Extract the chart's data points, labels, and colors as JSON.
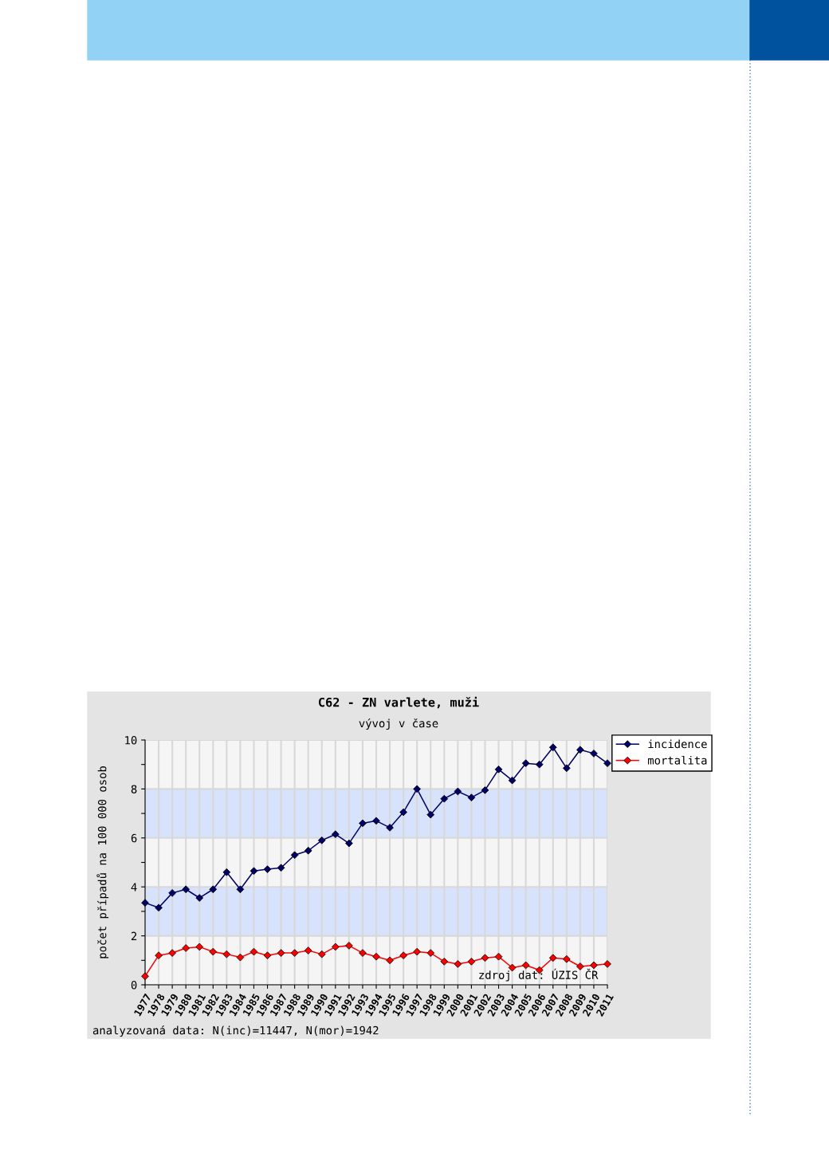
{
  "chart_data": {
    "type": "line",
    "title": "C62 - ZN varlete, muži",
    "subtitle": "vývoj v čase",
    "ylabel": "počet případů na 100 000 osob",
    "categories": [
      "1977",
      "1978",
      "1979",
      "1980",
      "1981",
      "1982",
      "1983",
      "1984",
      "1985",
      "1986",
      "1987",
      "1988",
      "1989",
      "1990",
      "1991",
      "1992",
      "1993",
      "1994",
      "1995",
      "1996",
      "1997",
      "1998",
      "1999",
      "2000",
      "2001",
      "2002",
      "2003",
      "2004",
      "2005",
      "2006",
      "2007",
      "2008",
      "2009",
      "2010",
      "2011"
    ],
    "series": [
      {
        "name": "incidence",
        "color": "#000066",
        "values": [
          3.35,
          3.15,
          3.75,
          3.9,
          3.55,
          3.9,
          4.6,
          3.9,
          4.65,
          4.72,
          4.78,
          5.3,
          5.48,
          5.9,
          6.15,
          5.78,
          6.6,
          6.7,
          6.42,
          7.05,
          8.0,
          6.95,
          7.6,
          7.9,
          7.65,
          7.95,
          8.8,
          8.35,
          9.05,
          9.0,
          9.7,
          8.85,
          9.6,
          9.45,
          9.05
        ]
      },
      {
        "name": "mortalita",
        "color": "#ff0000",
        "values": [
          0.35,
          1.2,
          1.3,
          1.5,
          1.55,
          1.35,
          1.25,
          1.12,
          1.35,
          1.2,
          1.3,
          1.3,
          1.4,
          1.25,
          1.55,
          1.6,
          1.3,
          1.15,
          1.0,
          1.2,
          1.35,
          1.3,
          0.95,
          0.85,
          0.95,
          1.1,
          1.15,
          0.7,
          0.8,
          0.6,
          1.1,
          1.05,
          0.75,
          0.8,
          0.85
        ]
      }
    ],
    "ylim": [
      0,
      10
    ],
    "yticks": [
      0,
      {
        "value": 1,
        "label": null
      },
      2,
      {
        "value": 3,
        "label": null
      },
      4,
      {
        "value": 5,
        "label": null
      },
      6,
      {
        "value": 7,
        "label": null
      },
      8,
      {
        "value": 9,
        "label": null
      },
      10
    ],
    "bands": [
      {
        "axis": "y",
        "from": 2,
        "to": 4,
        "color": "#d7e2fc"
      },
      {
        "axis": "y",
        "from": 6,
        "to": 8,
        "color": "#d7e2fc"
      }
    ],
    "annotations": [
      "zdroj dat: ÚZIS ČR",
      "analyzovaná data: N(inc)=11447, N(mor)=1942"
    ],
    "grid": true,
    "legend": "top right",
    "marker": "diamond",
    "line_style": "solid"
  }
}
